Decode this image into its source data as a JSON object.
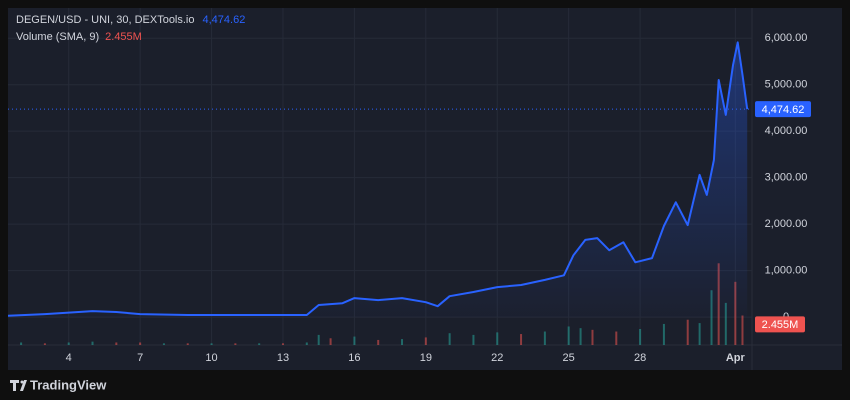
{
  "chart_data": {
    "type": "line",
    "last_price": {
      "value": 4474.62,
      "label": "4,474.62"
    },
    "volume_sma": {
      "value": 2.455,
      "label": "2.455M"
    },
    "footer": "TradingView",
    "xlim": [
      1.45,
      32.7
    ],
    "xticks": [
      4,
      7,
      10,
      13,
      16,
      19,
      22,
      25,
      28,
      {
        "value": 32,
        "label": "Apr"
      }
    ],
    "ylim": [
      -600,
      6650
    ],
    "yticks": [
      {
        "value": 6000,
        "label": "6,000.00"
      },
      {
        "value": 5000,
        "label": "5,000.00"
      },
      {
        "value": 4000,
        "label": "4,000.00"
      },
      {
        "value": 3000,
        "label": "3,000.00"
      },
      {
        "value": 2000,
        "label": "2,000.00"
      },
      {
        "value": 1000,
        "label": "1,000.00"
      },
      0
    ],
    "y2lim": [
      0,
      40
    ],
    "grid": true,
    "series": [
      {
        "name": "DEGEN/USD - UNI, 30, DEXTools.io",
        "color": "#2962ff",
        "x": [
          1.45,
          3,
          5,
          6,
          7,
          9,
          11,
          13,
          14,
          14.5,
          15.5,
          16,
          17,
          18,
          19,
          19.5,
          20,
          21,
          22,
          23,
          24,
          24.8,
          25.2,
          25.7,
          26.2,
          26.7,
          27.3,
          27.8,
          28.5,
          29,
          29.5,
          30,
          30.5,
          30.8,
          31.1,
          31.3,
          31.6,
          31.9,
          32.1,
          32.3,
          32.5
        ],
        "values": [
          30,
          65,
          130,
          110,
          65,
          45,
          45,
          45,
          45,
          260,
          300,
          410,
          365,
          410,
          320,
          235,
          450,
          540,
          645,
          690,
          800,
          900,
          1330,
          1660,
          1700,
          1440,
          1610,
          1180,
          1270,
          1960,
          2470,
          1980,
          3060,
          2630,
          3380,
          5100,
          4350,
          5420,
          5910,
          5210,
          4474.62
        ]
      },
      {
        "name": "Volume (SMA, 9)",
        "axis": "y2",
        "x": [
          2,
          3,
          4,
          5,
          6,
          7,
          8,
          9,
          10,
          11,
          12,
          13,
          14,
          14.5,
          15,
          16,
          17,
          18,
          19,
          20,
          21,
          22,
          23,
          24,
          25,
          25.5,
          26,
          27,
          28,
          29,
          30,
          30.5,
          31,
          31.3,
          31.6,
          32,
          32.3
        ],
        "values": [
          0.3,
          0.2,
          0.3,
          0.4,
          0.3,
          0.3,
          0.2,
          0.2,
          0.2,
          0.2,
          0.2,
          0.2,
          0.3,
          1.2,
          0.8,
          1.0,
          0.6,
          0.7,
          0.9,
          1.4,
          1.2,
          1.5,
          1.3,
          1.6,
          2.2,
          2.0,
          1.8,
          1.6,
          1.9,
          2.5,
          3.0,
          2.6,
          6.5,
          9.7,
          5.0,
          7.5,
          3.5
        ],
        "colors": [
          "#26a69a",
          "#ef5350",
          "#26a69a",
          "#26a69a",
          "#ef5350",
          "#ef5350",
          "#26a69a",
          "#ef5350",
          "#26a69a",
          "#ef5350",
          "#26a69a",
          "#ef5350",
          "#26a69a",
          "#26a69a",
          "#ef5350",
          "#26a69a",
          "#ef5350",
          "#26a69a",
          "#ef5350",
          "#26a69a",
          "#26a69a",
          "#26a69a",
          "#ef5350",
          "#26a69a",
          "#26a69a",
          "#26a69a",
          "#ef5350",
          "#ef5350",
          "#26a69a",
          "#26a69a",
          "#ef5350",
          "#26a69a",
          "#26a69a",
          "#ef5350",
          "#26a69a",
          "#ef5350",
          "#ef5350"
        ]
      }
    ]
  }
}
